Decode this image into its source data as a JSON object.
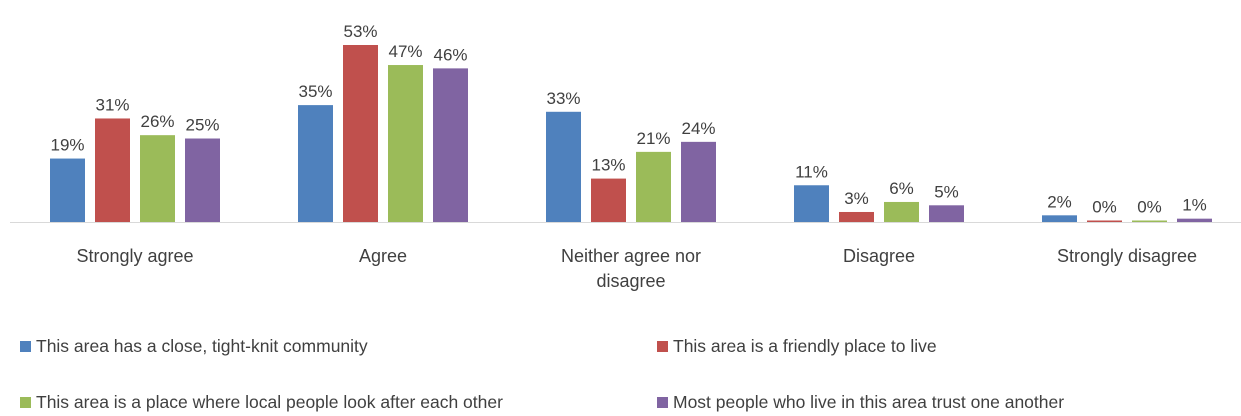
{
  "chart_data": {
    "type": "bar",
    "title": "",
    "xlabel": "",
    "ylabel": "",
    "ylim": [
      0,
      55
    ],
    "grid": false,
    "legend_position": "bottom",
    "categories": [
      [
        "Strongly agree"
      ],
      [
        "Agree"
      ],
      [
        "Neither agree nor",
        "disagree"
      ],
      [
        "Disagree"
      ],
      [
        "Strongly disagree"
      ]
    ],
    "series": [
      {
        "name": "This area has a close, tight-knit community",
        "color": "#4f81bd",
        "values": [
          19,
          35,
          33,
          11,
          2
        ]
      },
      {
        "name": "This area is a friendly place to live",
        "color": "#c0504d",
        "values": [
          31,
          53,
          13,
          3,
          0
        ]
      },
      {
        "name": "This area is a place where local people look after each other",
        "color": "#9bbb59",
        "values": [
          26,
          47,
          21,
          6,
          0
        ]
      },
      {
        "name": "Most people who live in this area trust one another",
        "color": "#8064a2",
        "values": [
          25,
          46,
          24,
          5,
          1
        ]
      }
    ],
    "value_suffix": "%"
  }
}
